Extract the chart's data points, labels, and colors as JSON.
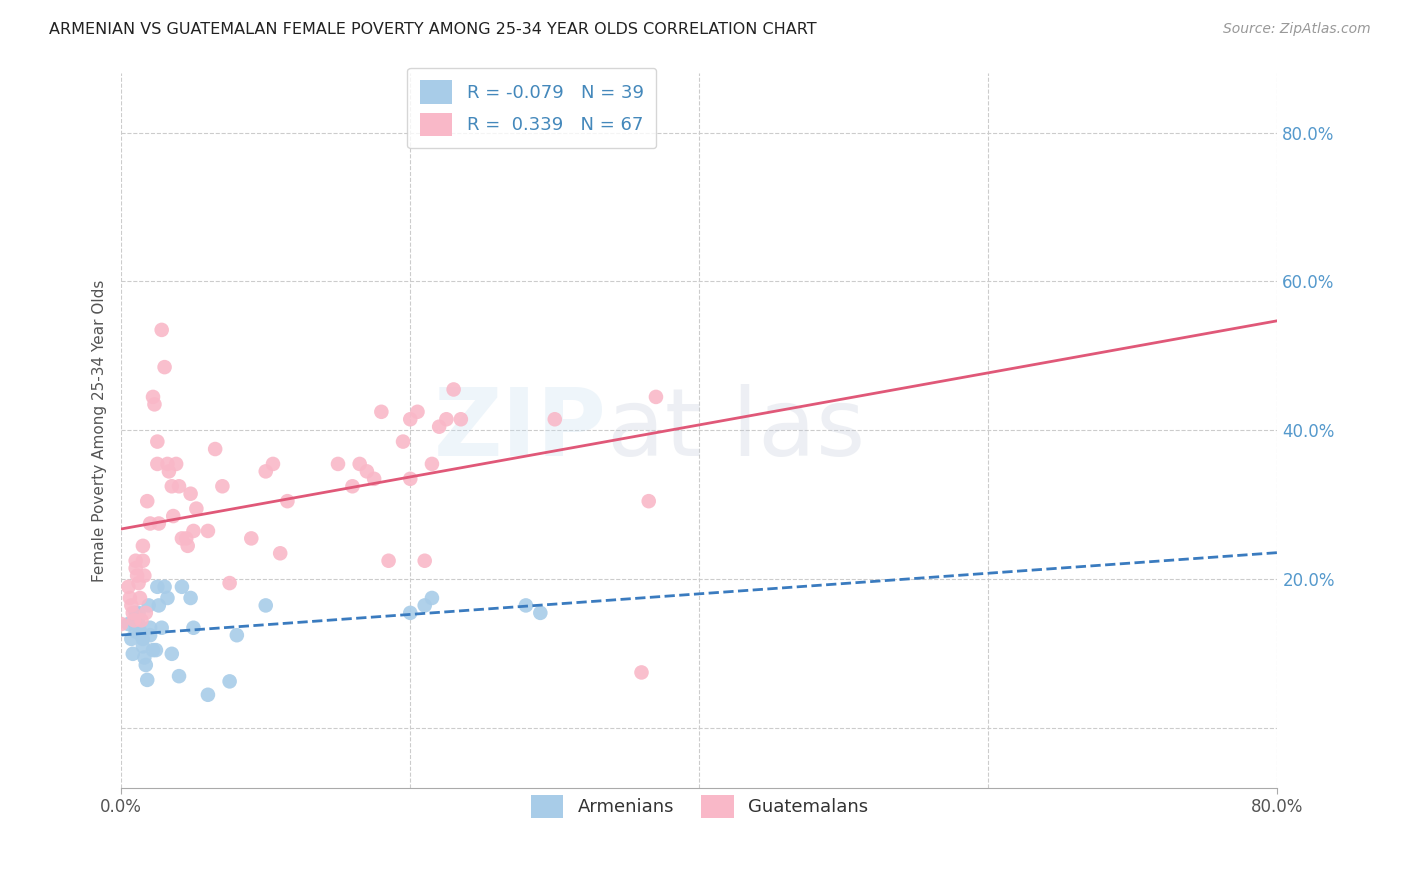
{
  "title": "ARMENIAN VS GUATEMALAN FEMALE POVERTY AMONG 25-34 YEAR OLDS CORRELATION CHART",
  "source": "Source: ZipAtlas.com",
  "ylabel": "Female Poverty Among 25-34 Year Olds",
  "xlim": [
    0.0,
    0.8
  ],
  "ylim": [
    -0.08,
    0.88
  ],
  "armenian_R": -0.079,
  "armenian_N": 39,
  "guatemalan_R": 0.339,
  "guatemalan_N": 67,
  "armenian_color": "#a8cce8",
  "guatemalan_color": "#f9b8c8",
  "armenian_line_color": "#3a7bbf",
  "guatemalan_line_color": "#e05878",
  "background_color": "#ffffff",
  "grid_color": "#cccccc",
  "armenian_x": [
    0.005,
    0.007,
    0.008,
    0.01,
    0.01,
    0.01,
    0.012,
    0.012,
    0.013,
    0.014,
    0.015,
    0.015,
    0.016,
    0.017,
    0.018,
    0.019,
    0.02,
    0.02,
    0.022,
    0.024,
    0.025,
    0.026,
    0.028,
    0.03,
    0.032,
    0.035,
    0.04,
    0.042,
    0.048,
    0.05,
    0.06,
    0.075,
    0.08,
    0.1,
    0.2,
    0.21,
    0.215,
    0.28,
    0.29
  ],
  "armenian_y": [
    0.14,
    0.12,
    0.1,
    0.155,
    0.14,
    0.13,
    0.155,
    0.14,
    0.13,
    0.125,
    0.12,
    0.11,
    0.095,
    0.085,
    0.065,
    0.165,
    0.135,
    0.125,
    0.105,
    0.105,
    0.19,
    0.165,
    0.135,
    0.19,
    0.175,
    0.1,
    0.07,
    0.19,
    0.175,
    0.135,
    0.045,
    0.063,
    0.125,
    0.165,
    0.155,
    0.165,
    0.175,
    0.165,
    0.155
  ],
  "guatemalan_x": [
    0.0,
    0.005,
    0.006,
    0.007,
    0.008,
    0.009,
    0.01,
    0.01,
    0.011,
    0.012,
    0.013,
    0.014,
    0.015,
    0.015,
    0.016,
    0.017,
    0.018,
    0.02,
    0.022,
    0.023,
    0.025,
    0.025,
    0.026,
    0.028,
    0.03,
    0.032,
    0.033,
    0.035,
    0.036,
    0.038,
    0.04,
    0.042,
    0.045,
    0.046,
    0.048,
    0.05,
    0.052,
    0.06,
    0.065,
    0.07,
    0.075,
    0.09,
    0.1,
    0.105,
    0.11,
    0.115,
    0.15,
    0.16,
    0.165,
    0.17,
    0.175,
    0.18,
    0.185,
    0.195,
    0.2,
    0.2,
    0.205,
    0.21,
    0.215,
    0.22,
    0.225,
    0.23,
    0.235,
    0.3,
    0.36,
    0.365,
    0.37
  ],
  "guatemalan_y": [
    0.14,
    0.19,
    0.175,
    0.165,
    0.155,
    0.145,
    0.225,
    0.215,
    0.205,
    0.195,
    0.175,
    0.145,
    0.245,
    0.225,
    0.205,
    0.155,
    0.305,
    0.275,
    0.445,
    0.435,
    0.385,
    0.355,
    0.275,
    0.535,
    0.485,
    0.355,
    0.345,
    0.325,
    0.285,
    0.355,
    0.325,
    0.255,
    0.255,
    0.245,
    0.315,
    0.265,
    0.295,
    0.265,
    0.375,
    0.325,
    0.195,
    0.255,
    0.345,
    0.355,
    0.235,
    0.305,
    0.355,
    0.325,
    0.355,
    0.345,
    0.335,
    0.425,
    0.225,
    0.385,
    0.335,
    0.415,
    0.425,
    0.225,
    0.355,
    0.405,
    0.415,
    0.455,
    0.415,
    0.415,
    0.075,
    0.305,
    0.445
  ]
}
